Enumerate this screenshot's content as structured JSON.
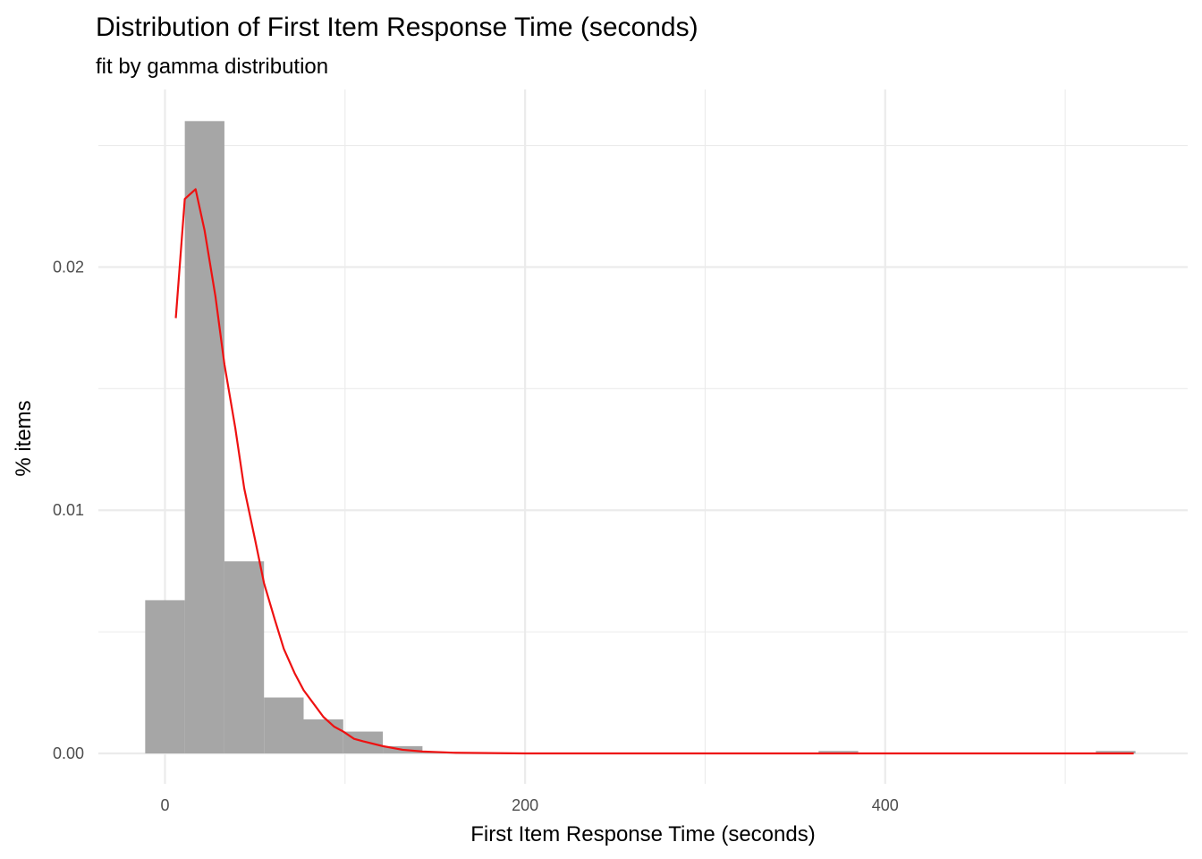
{
  "chart_data": {
    "type": "bar",
    "title": "Distribution of First Item Response Time (seconds)",
    "subtitle": "fit by gamma distribution",
    "xlabel": "First Item Response Time (seconds)",
    "ylabel": "% items",
    "xlim": [
      -37,
      568
    ],
    "ylim": [
      -0.00125,
      0.0273
    ],
    "x_ticks": [
      0,
      200,
      400
    ],
    "x_tick_labels": [
      "0",
      "200",
      "400"
    ],
    "y_ticks": [
      0.0,
      0.01,
      0.02
    ],
    "y_tick_labels": [
      "0.00",
      "0.01",
      "0.02"
    ],
    "grid": true,
    "legend": "none",
    "colors": {
      "bars": "#a6a6a6",
      "fit_line": "#ee1111",
      "grid": "#ebebeb"
    },
    "histogram": {
      "bin_width": 22,
      "bins": [
        {
          "x0": -11,
          "x1": 11,
          "density": 0.0063
        },
        {
          "x0": 11,
          "x1": 33,
          "density": 0.026
        },
        {
          "x0": 33,
          "x1": 55,
          "density": 0.0079
        },
        {
          "x0": 55,
          "x1": 77,
          "density": 0.0023
        },
        {
          "x0": 77,
          "x1": 99,
          "density": 0.0014
        },
        {
          "x0": 99,
          "x1": 121,
          "density": 0.0009
        },
        {
          "x0": 121,
          "x1": 143,
          "density": 0.0003
        },
        {
          "x0": 143,
          "x1": 165,
          "density": 4e-05
        },
        {
          "x0": 363,
          "x1": 385,
          "density": 0.0001
        },
        {
          "x0": 517,
          "x1": 539,
          "density": 0.0001
        }
      ]
    },
    "fit_series": {
      "name": "",
      "x": [
        6,
        11,
        17,
        22,
        28,
        33,
        39,
        44,
        50,
        55,
        61,
        66,
        72,
        77,
        83,
        88,
        94,
        99,
        105,
        110,
        121,
        132,
        143,
        160,
        200,
        300,
        400,
        538
      ],
      "y": [
        0.0179,
        0.0228,
        0.0232,
        0.0215,
        0.0188,
        0.016,
        0.0134,
        0.0109,
        0.0088,
        0.007,
        0.0055,
        0.0043,
        0.0033,
        0.0026,
        0.002,
        0.0015,
        0.0011,
        0.0009,
        0.0006,
        0.0005,
        0.0003,
        0.00015,
        8e-05,
        3e-05,
        0.0,
        0.0,
        0.0,
        0.0
      ]
    }
  }
}
